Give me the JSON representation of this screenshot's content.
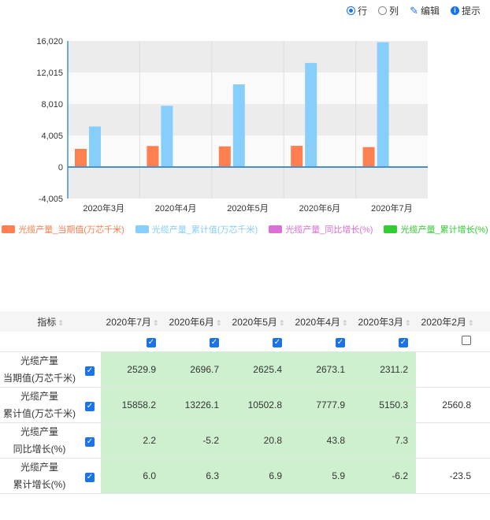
{
  "toolbar": {
    "row_label": "行",
    "col_label": "列",
    "edit_label": "编辑",
    "hint_label": "提示"
  },
  "colors": {
    "current": "#ff7f50",
    "cumulative": "#87cefa",
    "yoy": "#da70d6",
    "cum_growth": "#32cd32",
    "accent": "#1a73e8"
  },
  "chart_data": {
    "type": "bar",
    "categories": [
      "2020年3月",
      "2020年4月",
      "2020年5月",
      "2020年6月",
      "2020年7月"
    ],
    "series": [
      {
        "name": "光缆产量_当期值(万芯千米)",
        "values": [
          2311.2,
          2673.1,
          2625.4,
          2696.7,
          2529.9
        ]
      },
      {
        "name": "光缆产量_累计值(万芯千米)",
        "values": [
          5150.3,
          7777.9,
          10502.8,
          13226.1,
          15858.2
        ]
      },
      {
        "name": "光缆产量_同比增长(%)",
        "values": [
          7.3,
          43.8,
          20.8,
          -5.2,
          2.2
        ]
      },
      {
        "name": "光缆产量_累计增长(%)",
        "values": [
          -6.2,
          5.9,
          6.9,
          6.3,
          6.0
        ]
      }
    ],
    "yticks": [
      "16,020",
      "12,015",
      "8,010",
      "4,005",
      "0",
      "-4,005"
    ],
    "ylim": [
      -4005,
      16020
    ],
    "legend": "bottom"
  },
  "table": {
    "header": "指标",
    "columns": [
      "2020年7月",
      "2020年6月",
      "2020年5月",
      "2020年4月",
      "2020年3月",
      "2020年2月"
    ],
    "col_checked": [
      true,
      true,
      true,
      true,
      true,
      false
    ],
    "rows": [
      {
        "line1": "光缆产量",
        "line2": "当期值(万芯千米)",
        "values": [
          "2529.9",
          "2696.7",
          "2625.4",
          "2673.1",
          "2311.2",
          ""
        ]
      },
      {
        "line1": "光缆产量",
        "line2": "累计值(万芯千米)",
        "values": [
          "15858.2",
          "13226.1",
          "10502.8",
          "7777.9",
          "5150.3",
          "2560.8"
        ]
      },
      {
        "line1": "光缆产量",
        "line2": "同比增长(%)",
        "values": [
          "2.2",
          "-5.2",
          "20.8",
          "43.8",
          "7.3",
          ""
        ]
      },
      {
        "line1": "光缆产量",
        "line2": "累计增长(%)",
        "values": [
          "6.0",
          "6.3",
          "6.9",
          "5.9",
          "-6.2",
          "-23.5"
        ]
      }
    ]
  }
}
